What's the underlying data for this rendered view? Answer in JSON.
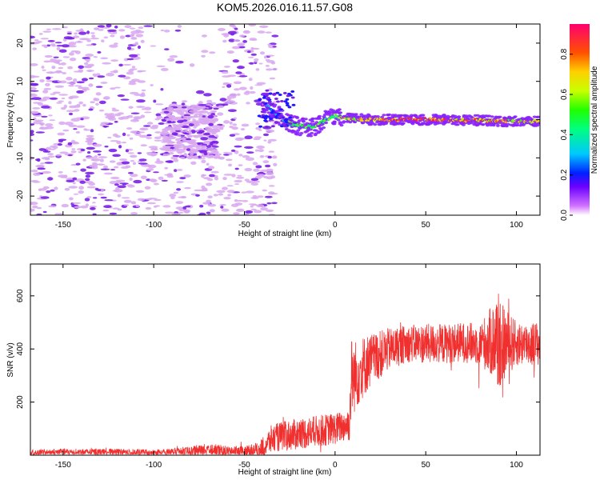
{
  "title": "KOM5.2026.016.11.57.G08",
  "colors": {
    "snr_line": "#f0302f",
    "axis": "#000000",
    "scatter_faint": "#d8a8f0",
    "scatter_strong": "#7a20e8"
  },
  "chart_data": [
    {
      "type": "heatmap",
      "name": "spectrogram",
      "title": "KOM5.2026.016.11.57.G08",
      "xlabel": "Height of straight line (km)",
      "ylabel": "Frequency (Hz)",
      "xlim": [
        -168,
        113
      ],
      "ylim": [
        -25,
        25
      ],
      "xticks": [
        -150,
        -100,
        -50,
        0,
        50,
        100
      ],
      "yticks": [
        -20,
        -10,
        0,
        10,
        20
      ],
      "xtick_labels": [
        "-150",
        "-100",
        "-50",
        "0",
        "50",
        "100"
      ],
      "ytick_labels": [
        "-20",
        "-10",
        "0",
        "10",
        "20"
      ],
      "colorbar": {
        "label": "Normalized spectral amplitude",
        "range": [
          0,
          0.95
        ],
        "ticks": [
          0.0,
          0.2,
          0.4,
          0.6,
          0.8
        ],
        "tick_labels": [
          "0.0",
          "0.2",
          "0.4",
          "0.6",
          "0.8"
        ]
      },
      "signal_track": {
        "x": [
          -40,
          -35,
          -30,
          -25,
          -20,
          -15,
          -10,
          -5,
          0,
          5,
          10,
          20,
          40,
          60,
          80,
          100,
          113
        ],
        "freq": [
          4.5,
          2.5,
          0.5,
          -1,
          -1.5,
          -2,
          -1.5,
          0,
          1,
          0.5,
          0.2,
          0,
          0,
          0,
          -0.2,
          -0.5,
          -0.5
        ],
        "amplitude": [
          0.15,
          0.2,
          0.3,
          0.45,
          0.5,
          0.55,
          0.5,
          0.45,
          0.5,
          0.6,
          0.7,
          0.8,
          0.85,
          0.8,
          0.75,
          0.7,
          0.7
        ]
      }
    },
    {
      "type": "line",
      "name": "snr",
      "xlabel": "Height of straight line (km)",
      "ylabel": "SNR (v/v)",
      "xlim": [
        -168,
        113
      ],
      "ylim": [
        0,
        720
      ],
      "xticks": [
        -150,
        -100,
        -50,
        0,
        50,
        100
      ],
      "yticks": [
        200,
        400,
        600
      ],
      "xtick_labels": [
        "-150",
        "-100",
        "-50",
        "0",
        "50",
        "100"
      ],
      "ytick_labels": [
        "200",
        "400",
        "600"
      ],
      "x": [
        -168,
        -150,
        -120,
        -100,
        -80,
        -70,
        -60,
        -50,
        -42,
        -35,
        -30,
        -20,
        -10,
        0,
        5,
        8,
        9,
        10,
        15,
        20,
        30,
        40,
        50,
        60,
        70,
        80,
        88,
        90,
        92,
        100,
        113
      ],
      "y": [
        10,
        12,
        12,
        10,
        14,
        20,
        16,
        14,
        20,
        60,
        70,
        80,
        90,
        100,
        110,
        120,
        300,
        290,
        330,
        360,
        400,
        420,
        420,
        420,
        425,
        420,
        430,
        440,
        420,
        420,
        420
      ],
      "spread": [
        12,
        12,
        12,
        12,
        18,
        25,
        20,
        20,
        30,
        55,
        55,
        60,
        60,
        60,
        60,
        70,
        150,
        140,
        120,
        100,
        80,
        70,
        75,
        75,
        75,
        80,
        150,
        220,
        150,
        85,
        85
      ]
    }
  ]
}
